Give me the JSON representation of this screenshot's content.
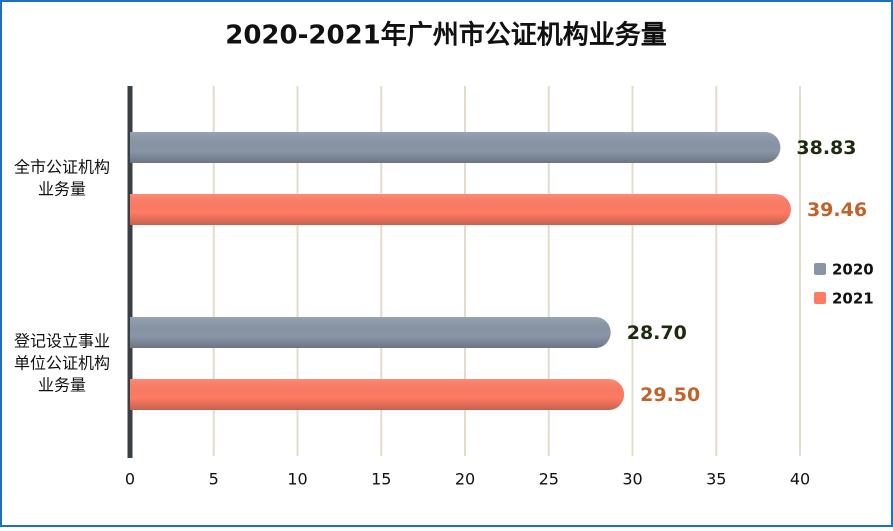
{
  "chart_data": {
    "type": "barh",
    "title": "2020-2021年广州市公证机构业务量",
    "categories": [
      "全市公证机构业务量",
      "登记设立事业单位公证机构业务量"
    ],
    "series": [
      {
        "name": "2020",
        "color": "#8a96a8",
        "label_color": "#1e2a10",
        "values": [
          38.83,
          28.7
        ],
        "value_labels": [
          "38.83",
          "28.70"
        ]
      },
      {
        "name": "2021",
        "color": "#ff7b63",
        "label_color": "#c0622a",
        "values": [
          39.46,
          29.5
        ],
        "value_labels": [
          "39.46",
          "29.50"
        ]
      }
    ],
    "xlim": [
      0,
      40
    ],
    "xticks": [
      0,
      5,
      10,
      15,
      20,
      25,
      30,
      35,
      40
    ],
    "grid": true,
    "legend": "right"
  }
}
